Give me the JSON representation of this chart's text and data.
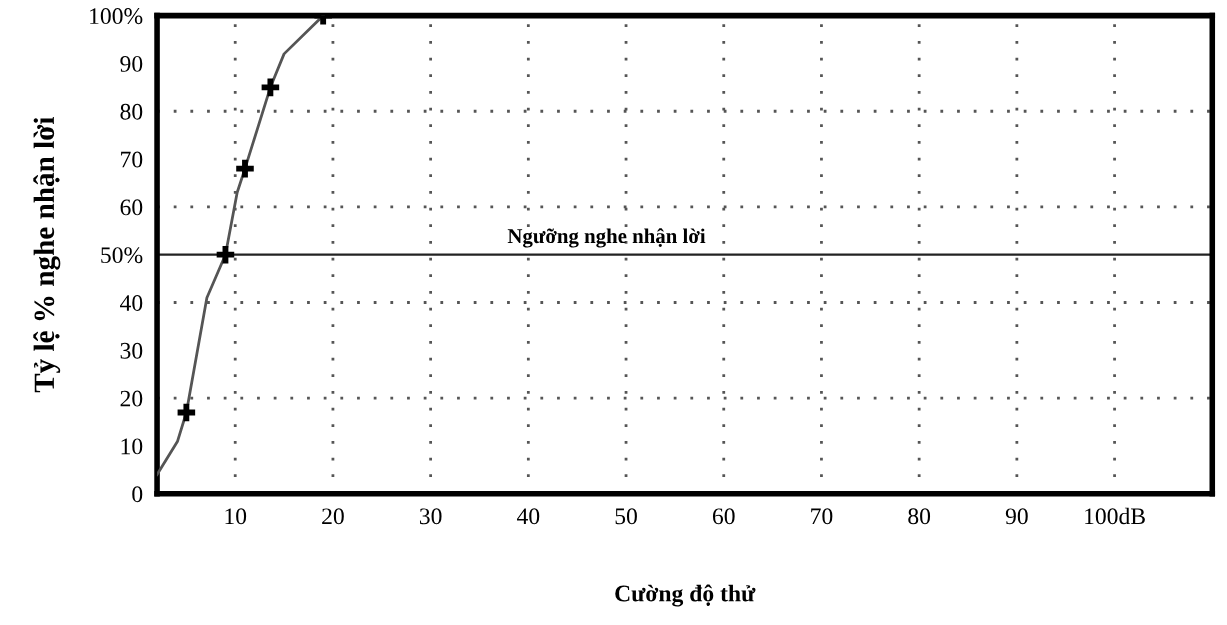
{
  "chart_data": {
    "type": "line",
    "xlabel": "Cường độ thử",
    "ylabel": "Tỷ lệ % nghe nhận lời",
    "xlim": [
      2,
      110
    ],
    "ylim": [
      0,
      100
    ],
    "xticks": [
      10,
      20,
      30,
      40,
      50,
      60,
      70,
      80,
      90,
      {
        "value": 100,
        "label": "100dB"
      }
    ],
    "yticks": [
      0,
      10,
      20,
      30,
      40,
      {
        "value": 50,
        "label": "50%"
      },
      60,
      70,
      80,
      90,
      {
        "value": 100,
        "label": "100%"
      }
    ],
    "grid": "x",
    "series": [
      {
        "color": "#555555",
        "marker": "none",
        "line_style": "solid",
        "x": [
          2,
          4.1,
          5,
          7.1,
          9,
          10.2,
          11,
          13.6,
          15,
          19
        ],
        "values": [
          4,
          11,
          17,
          41,
          50,
          63,
          68,
          85,
          92,
          100
        ]
      },
      {
        "type": "scatter",
        "color": "#000000",
        "marker": "cross",
        "x": [
          5,
          9,
          11,
          13.6,
          19
        ],
        "values": [
          17,
          50,
          68,
          85,
          100
        ]
      }
    ],
    "ref_lines": [
      {
        "axis": "y",
        "value": 50,
        "label": "Ngưỡng nghe nhận lời",
        "color": "#222222",
        "line_style": "solid"
      },
      {
        "axis": "y",
        "value": 20,
        "color": "#555555",
        "line_style": "dotted"
      },
      {
        "axis": "y",
        "value": 40,
        "color": "#555555",
        "line_style": "dotted"
      },
      {
        "axis": "y",
        "value": 60,
        "color": "#555555",
        "line_style": "dotted"
      },
      {
        "axis": "y",
        "value": 80,
        "color": "#555555",
        "line_style": "dotted"
      }
    ]
  }
}
